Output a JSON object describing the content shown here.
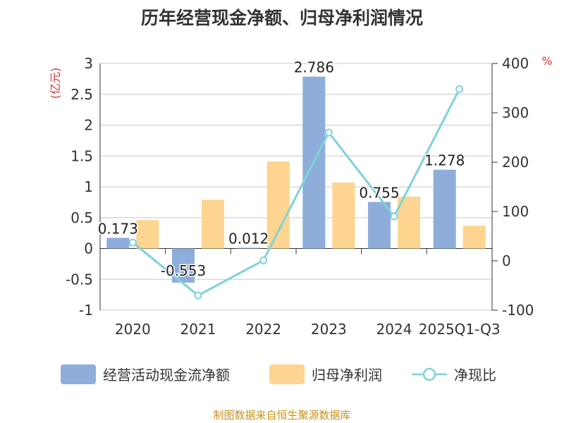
{
  "chart_data": {
    "type": "bar",
    "title": "历年经营现金净额、归母净利润情况",
    "categories": [
      "2020",
      "2021",
      "2022",
      "2023",
      "2024",
      "2025Q1-Q3"
    ],
    "series": [
      {
        "name": "经营活动现金流净额",
        "type": "bar",
        "axis": "left",
        "color": "#8eaddb",
        "values": [
          0.173,
          -0.553,
          0.012,
          2.786,
          0.755,
          1.278
        ],
        "labels": [
          "0.173",
          "-0.553",
          "0.012",
          "2.786",
          "0.755",
          "1.278"
        ]
      },
      {
        "name": "归母净利润",
        "type": "bar",
        "axis": "left",
        "color": "#fdd590",
        "values": [
          0.46,
          0.79,
          1.41,
          1.07,
          0.84,
          0.37
        ]
      },
      {
        "name": "净现比",
        "type": "line",
        "axis": "right",
        "color": "#7ed3d6",
        "values": [
          37,
          -70,
          1,
          260,
          90,
          348
        ]
      }
    ],
    "y_left": {
      "label": "(亿元)",
      "min": -1,
      "max": 3,
      "ticks": [
        "-1",
        "-0.5",
        "0",
        "0.5",
        "1",
        "1.5",
        "2",
        "2.5",
        "3"
      ]
    },
    "y_right": {
      "label": "%",
      "min": -100,
      "max": 400,
      "ticks": [
        "-100",
        "0",
        "100",
        "200",
        "300",
        "400"
      ]
    },
    "grid": true,
    "legend_position": "bottom"
  },
  "source": {
    "text": "制图数据来自恒生聚源数据库",
    "color": "#c8921c"
  },
  "axis_label_color": "#e03030"
}
